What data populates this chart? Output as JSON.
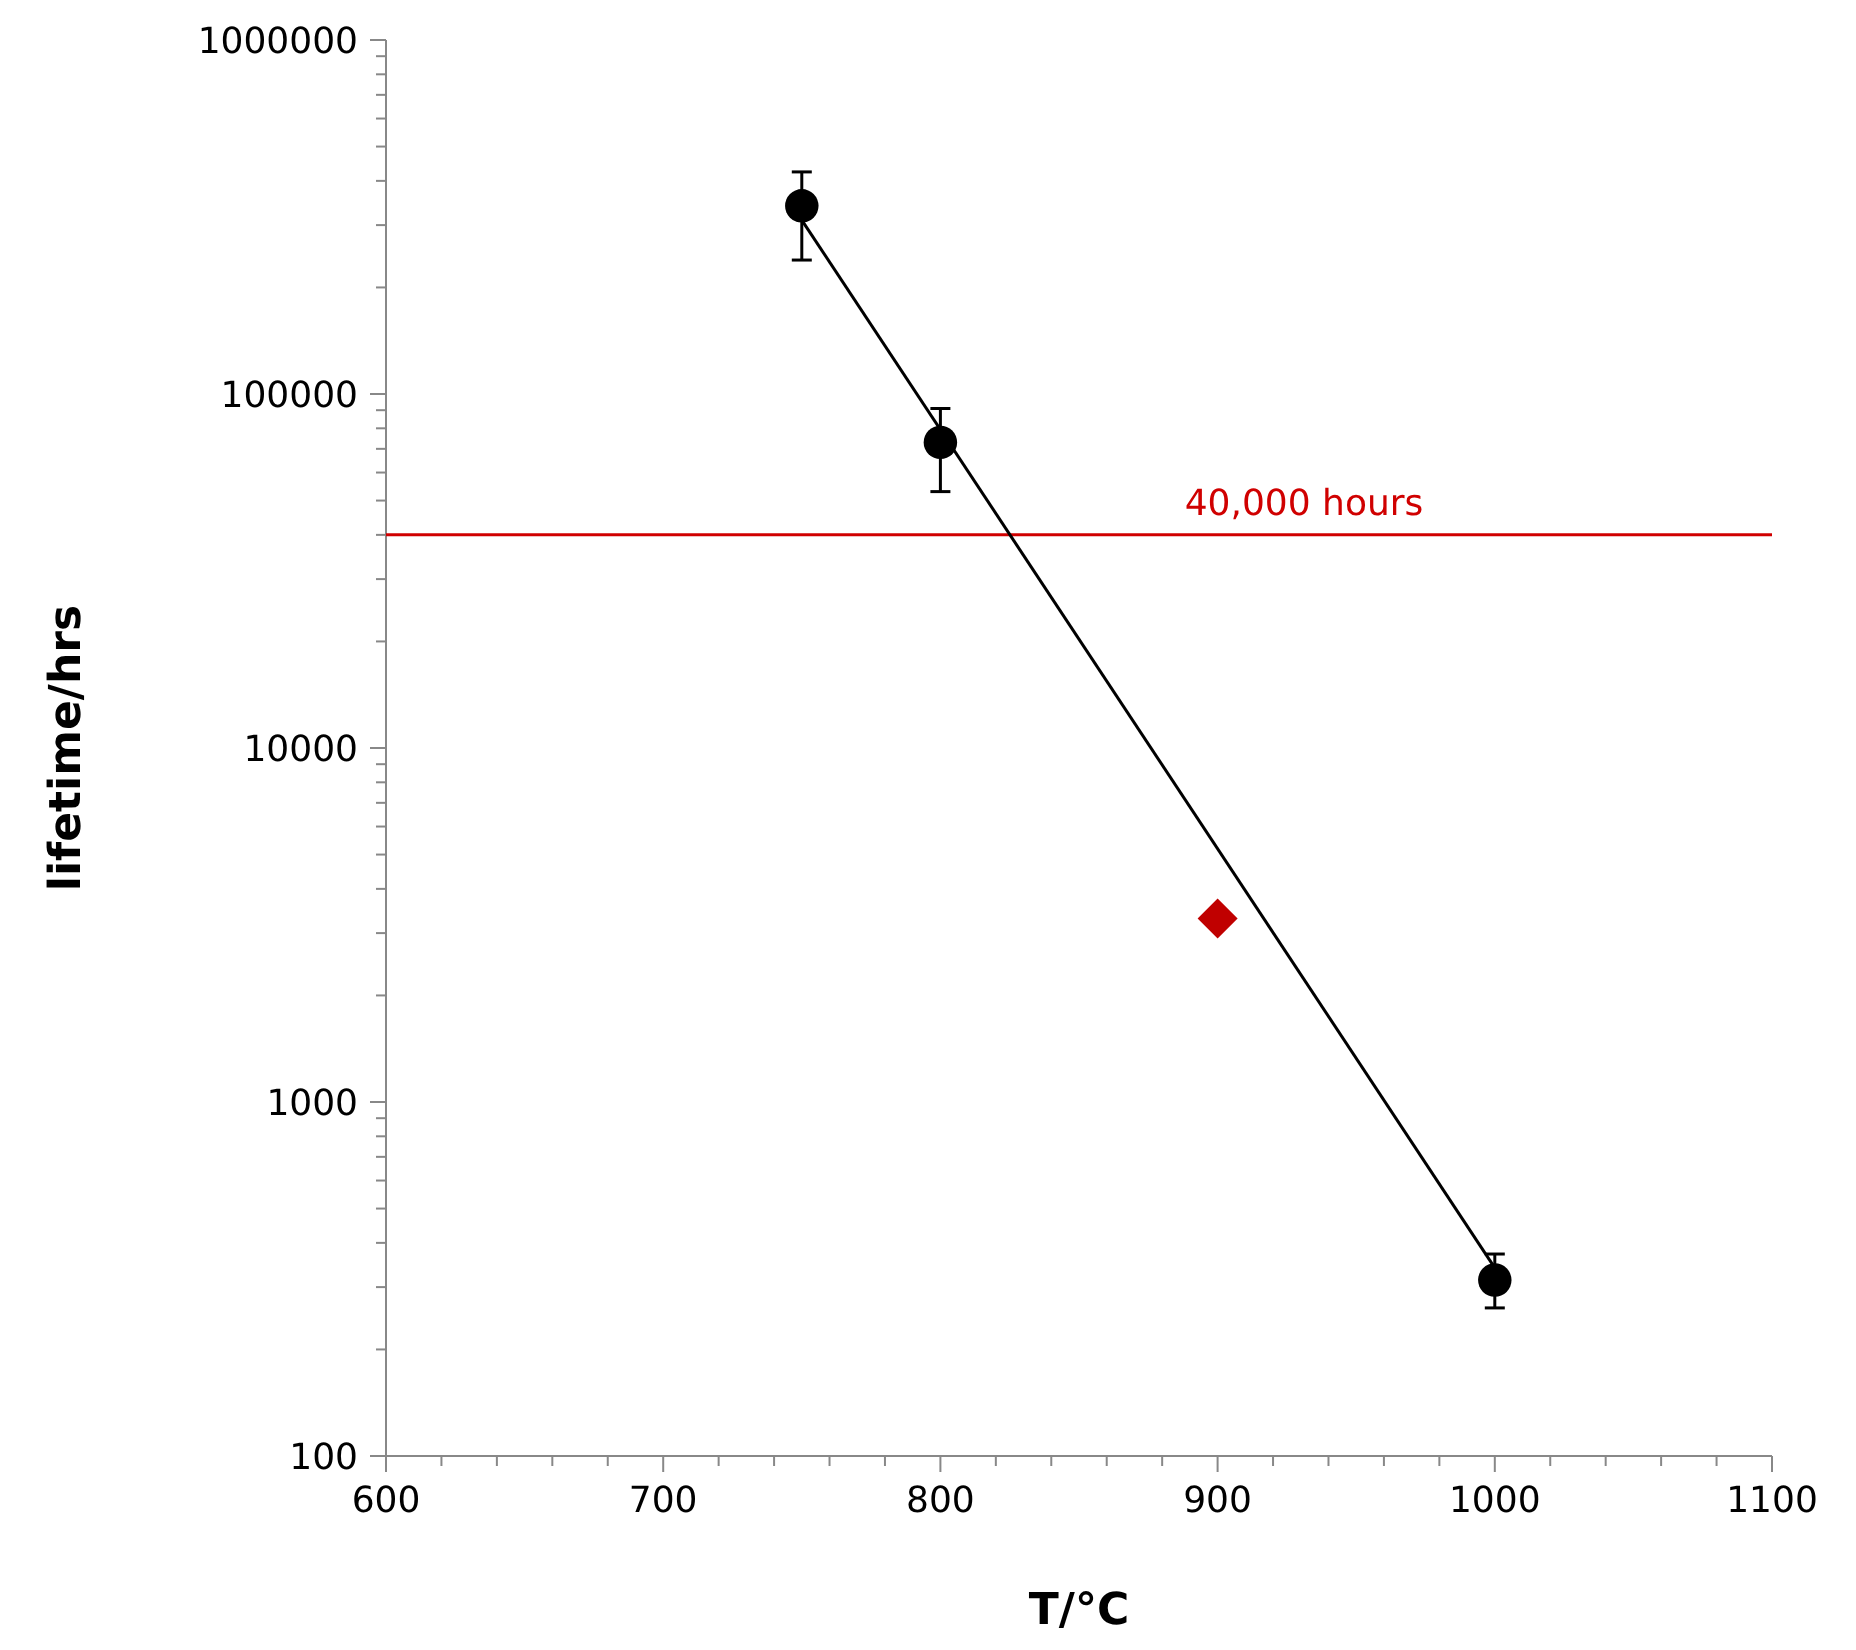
{
  "chart_data": {
    "type": "scatter",
    "xlabel": "T/°C",
    "ylabel": "lifetime/hrs",
    "log": "y",
    "xlim": [
      600,
      1100
    ],
    "xticks": [
      600,
      {
        "value": 620,
        "label": null
      },
      {
        "value": 640,
        "label": null
      },
      {
        "value": 660,
        "label": null
      },
      {
        "value": 680,
        "label": null
      },
      700,
      {
        "value": 720,
        "label": null
      },
      {
        "value": 740,
        "label": null
      },
      {
        "value": 760,
        "label": null
      },
      {
        "value": 780,
        "label": null
      },
      800,
      {
        "value": 820,
        "label": null
      },
      {
        "value": 840,
        "label": null
      },
      {
        "value": 860,
        "label": null
      },
      {
        "value": 880,
        "label": null
      },
      900,
      {
        "value": 920,
        "label": null
      },
      {
        "value": 940,
        "label": null
      },
      {
        "value": 960,
        "label": null
      },
      {
        "value": 980,
        "label": null
      },
      1000,
      {
        "value": 1020,
        "label": null
      },
      {
        "value": 1040,
        "label": null
      },
      {
        "value": 1060,
        "label": null
      },
      {
        "value": 1080,
        "label": null
      },
      1100
    ],
    "ylim": [
      100,
      1000000
    ],
    "yticks": [
      100,
      {
        "value": 200,
        "label": null
      },
      {
        "value": 300,
        "label": null
      },
      {
        "value": 400,
        "label": null
      },
      {
        "value": 500,
        "label": null
      },
      {
        "value": 600,
        "label": null
      },
      {
        "value": 700,
        "label": null
      },
      {
        "value": 800,
        "label": null
      },
      {
        "value": 900,
        "label": null
      },
      1000,
      {
        "value": 2000,
        "label": null
      },
      {
        "value": 3000,
        "label": null
      },
      {
        "value": 4000,
        "label": null
      },
      {
        "value": 5000,
        "label": null
      },
      {
        "value": 6000,
        "label": null
      },
      {
        "value": 7000,
        "label": null
      },
      {
        "value": 8000,
        "label": null
      },
      {
        "value": 9000,
        "label": null
      },
      10000,
      {
        "value": 20000,
        "label": null
      },
      {
        "value": 30000,
        "label": null
      },
      {
        "value": 40000,
        "label": null
      },
      {
        "value": 50000,
        "label": null
      },
      {
        "value": 60000,
        "label": null
      },
      {
        "value": 70000,
        "label": null
      },
      {
        "value": 80000,
        "label": null
      },
      {
        "value": 90000,
        "label": null
      },
      100000,
      {
        "value": 200000,
        "label": null
      },
      {
        "value": 300000,
        "label": null
      },
      {
        "value": 400000,
        "label": null
      },
      {
        "value": 500000,
        "label": null
      },
      {
        "value": 600000,
        "label": null
      },
      {
        "value": 700000,
        "label": null
      },
      {
        "value": 800000,
        "label": null
      },
      {
        "value": 900000,
        "label": null
      },
      1000000
    ],
    "series": [
      {
        "type": "line",
        "color": "#000000",
        "marker": "none",
        "x": [
          750,
          1000
        ],
        "values": [
          310000,
          340
        ]
      },
      {
        "color": "#000000",
        "marker": "circle",
        "x": [
          750,
          800,
          1000
        ],
        "values": [
          340000,
          73000,
          314
        ],
        "errors": [
          [
            239000,
            424000
          ],
          [
            53000,
            91000
          ],
          [
            262,
            372
          ]
        ]
      },
      {
        "color": "#c00000",
        "marker": "diamond",
        "x": [
          900
        ],
        "values": [
          3300
        ]
      }
    ],
    "ref_lines": [
      {
        "axis": "y",
        "value": 40000,
        "label": "40,000 hours",
        "color": "#d00000"
      }
    ]
  }
}
